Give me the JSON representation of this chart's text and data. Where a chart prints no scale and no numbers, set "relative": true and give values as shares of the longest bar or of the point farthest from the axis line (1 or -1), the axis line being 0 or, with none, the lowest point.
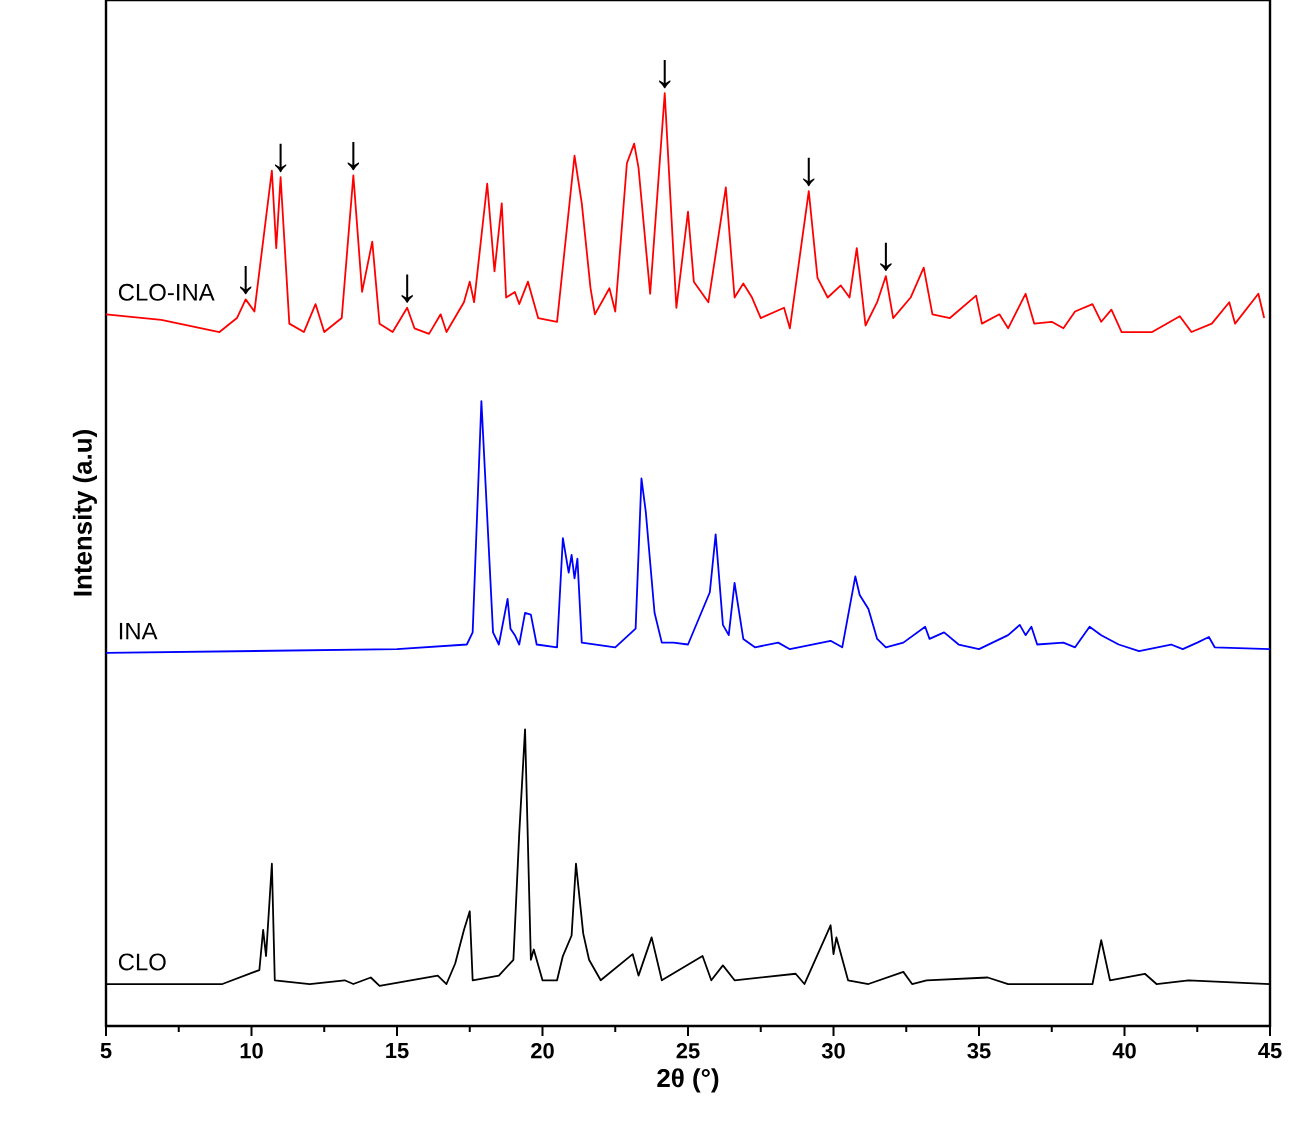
{
  "chart_data": {
    "type": "line",
    "relative": true,
    "xlabel": "2θ (°)",
    "ylabel": "Intensity (a.u)",
    "xlim": [
      5,
      45
    ],
    "xticks": [
      5,
      10,
      15,
      20,
      25,
      30,
      35,
      40,
      45
    ],
    "tick_labels": "x",
    "grid": false,
    "legend": false,
    "series": [
      {
        "name": "CLO-INA",
        "color": "#ff0000",
        "x": [
          5,
          6.9,
          8.9,
          9.5,
          9.8,
          10.1,
          10.5,
          10.7,
          10.85,
          11.0,
          11.3,
          11.8,
          12.2,
          12.5,
          13.1,
          13.5,
          13.8,
          14.15,
          14.4,
          14.85,
          15.35,
          15.6,
          16.1,
          16.5,
          16.7,
          17.3,
          17.5,
          17.65,
          18.1,
          18.35,
          18.6,
          18.75,
          19.05,
          19.2,
          19.5,
          19.85,
          20.5,
          21.1,
          21.35,
          21.65,
          21.8,
          22.3,
          22.5,
          22.9,
          23.15,
          23.3,
          23.7,
          24.2,
          24.6,
          25.0,
          25.2,
          25.7,
          26.3,
          26.6,
          26.9,
          27.2,
          27.5,
          28.3,
          28.5,
          29.15,
          29.45,
          29.8,
          30.25,
          30.55,
          30.8,
          31.1,
          31.5,
          31.8,
          32.05,
          32.65,
          33.1,
          33.4,
          34.0,
          34.9,
          35.1,
          35.7,
          36.0,
          36.6,
          36.9,
          37.5,
          37.9,
          38.3,
          38.9,
          39.2,
          39.55,
          39.9,
          40.95,
          41.9,
          42.3,
          43.0,
          43.6,
          43.8,
          44.6,
          44.8
        ],
        "values": [
          0.763,
          0.757,
          0.744,
          0.759,
          0.779,
          0.766,
          0.867,
          0.917,
          0.834,
          0.91,
          0.753,
          0.744,
          0.774,
          0.744,
          0.759,
          0.912,
          0.787,
          0.841,
          0.753,
          0.744,
          0.77,
          0.748,
          0.742,
          0.763,
          0.744,
          0.776,
          0.798,
          0.776,
          0.903,
          0.809,
          0.882,
          0.781,
          0.787,
          0.774,
          0.798,
          0.759,
          0.755,
          0.933,
          0.882,
          0.791,
          0.763,
          0.791,
          0.766,
          0.925,
          0.946,
          0.92,
          0.785,
          1.0,
          0.77,
          0.873,
          0.798,
          0.776,
          0.899,
          0.781,
          0.796,
          0.781,
          0.759,
          0.77,
          0.748,
          0.895,
          0.802,
          0.781,
          0.794,
          0.781,
          0.834,
          0.751,
          0.776,
          0.804,
          0.759,
          0.781,
          0.813,
          0.763,
          0.759,
          0.783,
          0.753,
          0.763,
          0.748,
          0.785,
          0.753,
          0.755,
          0.748,
          0.766,
          0.774,
          0.755,
          0.768,
          0.744,
          0.744,
          0.761,
          0.744,
          0.753,
          0.776,
          0.753,
          0.785,
          0.759
        ]
      },
      {
        "name": "INA",
        "color": "#0000ff",
        "x": [
          5,
          10,
          15,
          17.4,
          17.6,
          17.9,
          18.3,
          18.5,
          18.8,
          18.9,
          19.05,
          19.2,
          19.4,
          19.6,
          19.8,
          20.5,
          20.7,
          20.9,
          21.0,
          21.1,
          21.2,
          21.35,
          22.5,
          23.2,
          23.4,
          23.55,
          23.85,
          24.1,
          24.5,
          25.0,
          25.75,
          25.95,
          26.2,
          26.4,
          26.6,
          26.9,
          27.3,
          28.1,
          28.5,
          29.9,
          30.3,
          30.75,
          30.9,
          31.2,
          31.5,
          31.8,
          32.4,
          33.15,
          33.3,
          33.8,
          34.3,
          35.0,
          36.0,
          36.4,
          36.6,
          36.8,
          37.0,
          37.9,
          38.3,
          38.8,
          39.2,
          39.8,
          40.5,
          41.6,
          42.0,
          42.5,
          42.9,
          43.1,
          45
        ],
        "values": [
          0.4,
          0.402,
          0.404,
          0.409,
          0.422,
          0.67,
          0.422,
          0.409,
          0.458,
          0.426,
          0.419,
          0.409,
          0.443,
          0.441,
          0.409,
          0.406,
          0.523,
          0.486,
          0.505,
          0.48,
          0.501,
          0.411,
          0.406,
          0.426,
          0.587,
          0.551,
          0.443,
          0.411,
          0.411,
          0.409,
          0.465,
          0.527,
          0.43,
          0.419,
          0.475,
          0.415,
          0.406,
          0.411,
          0.404,
          0.413,
          0.406,
          0.482,
          0.462,
          0.447,
          0.415,
          0.406,
          0.411,
          0.428,
          0.415,
          0.422,
          0.409,
          0.404,
          0.419,
          0.43,
          0.419,
          0.428,
          0.409,
          0.411,
          0.406,
          0.428,
          0.419,
          0.409,
          0.402,
          0.409,
          0.404,
          0.411,
          0.417,
          0.406,
          0.404
        ]
      },
      {
        "name": "CLO",
        "color": "#000000",
        "x": [
          5,
          9,
          10.27,
          10.4,
          10.5,
          10.7,
          10.8,
          12,
          13.2,
          13.5,
          14.1,
          14.4,
          16.4,
          16.7,
          17.0,
          17.3,
          17.5,
          17.6,
          18.5,
          19.0,
          19.2,
          19.4,
          19.6,
          19.7,
          20.0,
          20.5,
          20.7,
          21.0,
          21.15,
          21.4,
          21.6,
          22.0,
          23.1,
          23.3,
          23.75,
          24.1,
          25.5,
          25.8,
          26.2,
          26.6,
          28.7,
          29.0,
          29.9,
          30.0,
          30.1,
          30.5,
          31.2,
          32.4,
          32.7,
          33.2,
          35.3,
          36.0,
          38.9,
          39.2,
          39.5,
          40.7,
          41.1,
          42.2,
          45
        ],
        "values": [
          0.045,
          0.045,
          0.06,
          0.103,
          0.075,
          0.174,
          0.049,
          0.045,
          0.049,
          0.045,
          0.052,
          0.043,
          0.054,
          0.045,
          0.067,
          0.103,
          0.123,
          0.049,
          0.054,
          0.071,
          0.206,
          0.318,
          0.071,
          0.082,
          0.049,
          0.049,
          0.075,
          0.097,
          0.174,
          0.099,
          0.071,
          0.049,
          0.077,
          0.054,
          0.095,
          0.049,
          0.075,
          0.049,
          0.065,
          0.049,
          0.056,
          0.045,
          0.108,
          0.077,
          0.095,
          0.049,
          0.045,
          0.058,
          0.045,
          0.049,
          0.052,
          0.045,
          0.045,
          0.092,
          0.049,
          0.056,
          0.045,
          0.049,
          0.045
        ]
      }
    ],
    "annotations": [
      {
        "text": "↓",
        "x": 9.8,
        "y": 0.779
      },
      {
        "text": "↓",
        "x": 11.0,
        "y": 0.91
      },
      {
        "text": "↓",
        "x": 13.5,
        "y": 0.912
      },
      {
        "text": "↓",
        "x": 15.35,
        "y": 0.77
      },
      {
        "text": "↓",
        "x": 24.2,
        "y": 1.0
      },
      {
        "text": "↓",
        "x": 29.15,
        "y": 0.895
      },
      {
        "text": "↓",
        "x": 31.8,
        "y": 0.804
      }
    ]
  }
}
